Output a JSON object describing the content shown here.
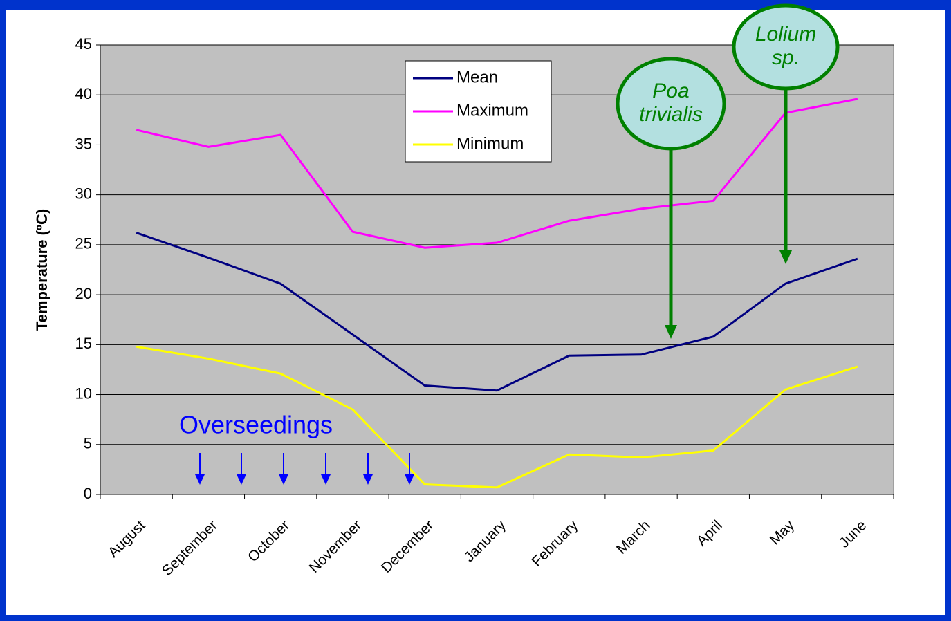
{
  "chart_data": {
    "type": "line",
    "y_label": "Temperature (ºC)",
    "categories": [
      "August",
      "September",
      "October",
      "November",
      "December",
      "January",
      "February",
      "March",
      "April",
      "May",
      "June"
    ],
    "series": [
      {
        "name": "Mean",
        "color": "#000080",
        "values": [
          26.2,
          23.7,
          21.1,
          16.0,
          10.9,
          10.4,
          13.9,
          14.0,
          15.8,
          21.1,
          23.6
        ]
      },
      {
        "name": "Maximum",
        "color": "#ff00ff",
        "values": [
          36.5,
          34.8,
          36.0,
          26.3,
          24.7,
          25.2,
          27.4,
          28.6,
          29.4,
          38.2,
          39.6
        ]
      },
      {
        "name": "Minimum",
        "color": "#ffff00",
        "values": [
          14.8,
          13.6,
          12.1,
          8.5,
          1.0,
          0.7,
          4.0,
          3.7,
          4.4,
          10.5,
          12.8
        ]
      }
    ],
    "ylim": [
      0,
      45
    ],
    "yticks": [
      0,
      5,
      10,
      15,
      20,
      25,
      30,
      35,
      40,
      45
    ],
    "grid": true,
    "annotations": {
      "overseedings": "Overseedings",
      "poa": [
        "Poa",
        "trivialis"
      ],
      "lolium": [
        "Lolium",
        "sp."
      ]
    }
  }
}
